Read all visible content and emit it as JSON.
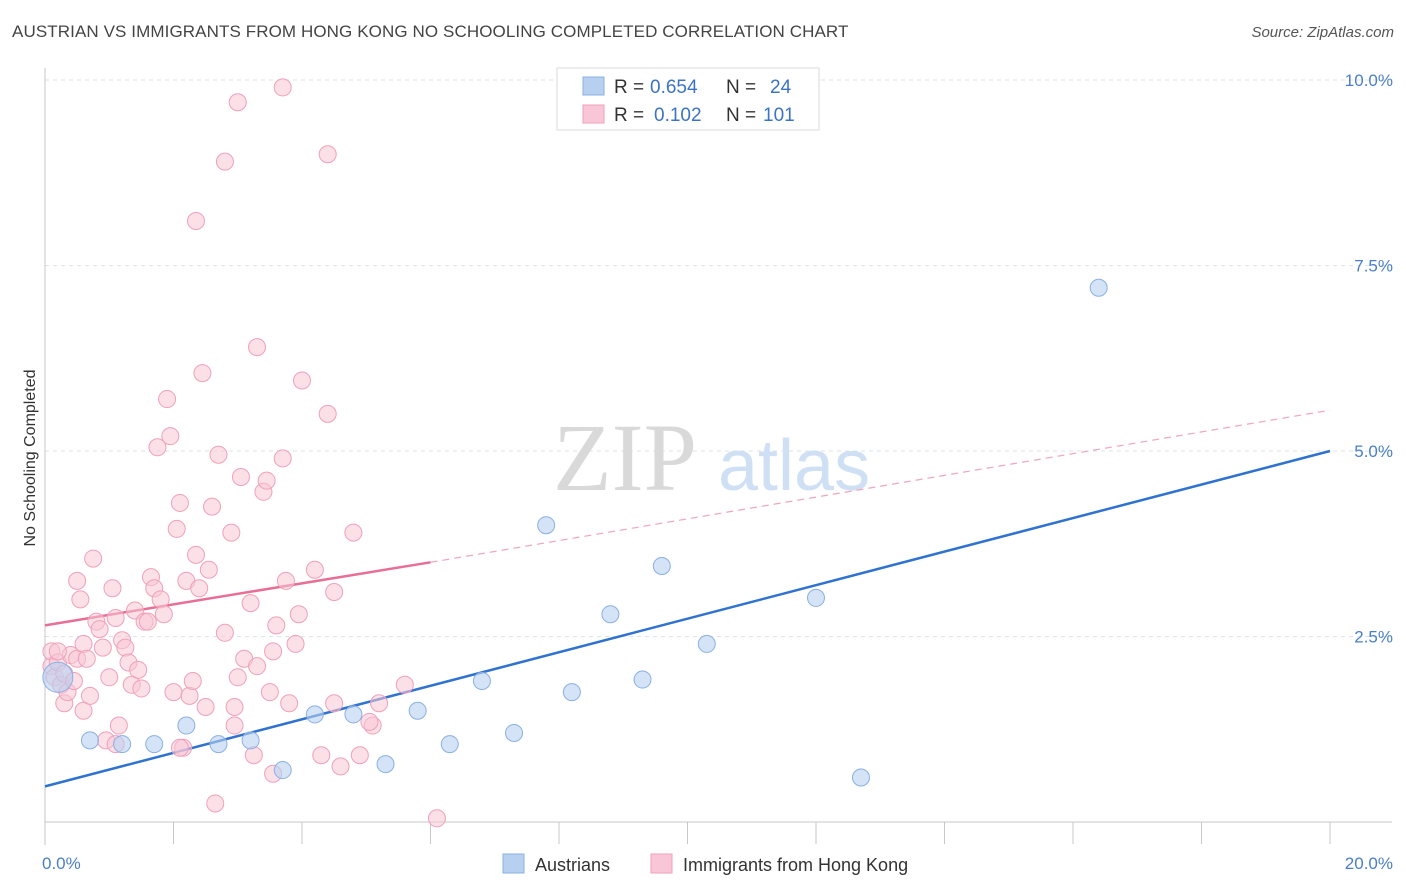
{
  "header": {
    "title": "AUSTRIAN VS IMMIGRANTS FROM HONG KONG NO SCHOOLING COMPLETED CORRELATION CHART",
    "source": "Source: ZipAtlas.com"
  },
  "watermark": {
    "zip": "ZIP",
    "atlas": "atlas"
  },
  "legend_top": [
    {
      "r_label": "R =",
      "r_value": "0.654",
      "n_label": "N =",
      "n_value": "24"
    },
    {
      "r_label": "R =",
      "r_value": "0.102",
      "n_label": "N =",
      "n_value": "101"
    }
  ],
  "colors": {
    "blue_fill": "#b8d0f0",
    "blue_stroke": "#8ab0e4",
    "blue_line": "#2f72d0",
    "pink_fill": "#f8c6d6",
    "pink_stroke": "#f0a0bb",
    "pink_line": "#e86e96",
    "tick_text": "#4a7fc8",
    "grid": "#dde3ea"
  },
  "chart_data": {
    "type": "scatter",
    "title": "AUSTRIAN VS IMMIGRANTS FROM HONG KONG NO SCHOOLING COMPLETED CORRELATION CHART",
    "ylabel": "No Schooling Completed",
    "xlim": [
      0,
      20
    ],
    "ylim": [
      0,
      10
    ],
    "x_tick_labels": [
      "0.0%",
      "20.0%"
    ],
    "y_ticks": [
      2.5,
      5.0,
      7.5,
      10.0
    ],
    "y_tick_labels": [
      "2.5%",
      "5.0%",
      "7.5%",
      "10.0%"
    ],
    "grid": true,
    "legend_placement": "top-center and bottom",
    "series": [
      {
        "name": "Austrians",
        "r": 0.654,
        "n": 24,
        "trend": {
          "x": [
            0,
            20
          ],
          "y": [
            0.48,
            5.0
          ],
          "style": "solid"
        },
        "points": [
          [
            0.2,
            1.95
          ],
          [
            0.7,
            1.1
          ],
          [
            1.2,
            1.05
          ],
          [
            1.7,
            1.05
          ],
          [
            2.2,
            1.3
          ],
          [
            2.7,
            1.05
          ],
          [
            3.2,
            1.1
          ],
          [
            3.7,
            0.7
          ],
          [
            4.2,
            1.45
          ],
          [
            4.8,
            1.45
          ],
          [
            5.3,
            0.78
          ],
          [
            5.8,
            1.5
          ],
          [
            6.3,
            1.05
          ],
          [
            6.8,
            1.9
          ],
          [
            7.3,
            1.2
          ],
          [
            7.8,
            4.0
          ],
          [
            8.2,
            1.75
          ],
          [
            8.8,
            2.8
          ],
          [
            9.3,
            1.92
          ],
          [
            9.6,
            3.45
          ],
          [
            10.3,
            2.4
          ],
          [
            12.0,
            3.02
          ],
          [
            12.7,
            0.6
          ],
          [
            16.4,
            7.2
          ]
        ]
      },
      {
        "name": "Immigrants from Hong Kong",
        "r": 0.102,
        "n": 101,
        "trend": {
          "x": [
            0,
            6.0,
            20
          ],
          "y": [
            2.65,
            3.5,
            5.55
          ],
          "style": "solid then dashed"
        },
        "points": [
          [
            0.1,
            2.1
          ],
          [
            0.1,
            2.3
          ],
          [
            0.15,
            1.95
          ],
          [
            0.2,
            2.15
          ],
          [
            0.25,
            1.85
          ],
          [
            0.3,
            2.0
          ],
          [
            0.3,
            1.6
          ],
          [
            0.35,
            1.75
          ],
          [
            0.4,
            2.25
          ],
          [
            0.45,
            1.9
          ],
          [
            0.5,
            3.25
          ],
          [
            0.5,
            2.2
          ],
          [
            0.55,
            3.0
          ],
          [
            0.6,
            2.4
          ],
          [
            0.6,
            1.5
          ],
          [
            0.65,
            2.2
          ],
          [
            0.7,
            1.7
          ],
          [
            0.75,
            3.55
          ],
          [
            0.8,
            2.7
          ],
          [
            0.85,
            2.6
          ],
          [
            0.9,
            2.35
          ],
          [
            0.95,
            1.1
          ],
          [
            1.0,
            1.95
          ],
          [
            1.05,
            3.15
          ],
          [
            1.1,
            2.75
          ],
          [
            1.15,
            1.3
          ],
          [
            1.2,
            2.45
          ],
          [
            1.25,
            2.35
          ],
          [
            1.3,
            2.15
          ],
          [
            1.35,
            1.85
          ],
          [
            1.4,
            2.85
          ],
          [
            1.45,
            2.05
          ],
          [
            1.5,
            1.8
          ],
          [
            1.55,
            2.7
          ],
          [
            1.6,
            2.7
          ],
          [
            1.65,
            3.3
          ],
          [
            1.7,
            3.15
          ],
          [
            1.75,
            5.05
          ],
          [
            1.8,
            3.0
          ],
          [
            1.85,
            2.8
          ],
          [
            1.9,
            5.7
          ],
          [
            1.95,
            5.2
          ],
          [
            2.0,
            1.75
          ],
          [
            2.05,
            3.95
          ],
          [
            2.1,
            4.3
          ],
          [
            2.15,
            1.0
          ],
          [
            2.2,
            3.25
          ],
          [
            2.25,
            1.7
          ],
          [
            2.3,
            1.9
          ],
          [
            2.35,
            3.6
          ],
          [
            2.4,
            3.15
          ],
          [
            2.45,
            6.05
          ],
          [
            2.5,
            1.55
          ],
          [
            2.55,
            3.4
          ],
          [
            2.6,
            4.25
          ],
          [
            2.65,
            0.25
          ],
          [
            2.7,
            4.95
          ],
          [
            2.8,
            2.55
          ],
          [
            2.9,
            3.9
          ],
          [
            2.95,
            1.3
          ],
          [
            3.0,
            1.95
          ],
          [
            3.05,
            4.65
          ],
          [
            3.1,
            2.2
          ],
          [
            3.2,
            2.95
          ],
          [
            3.25,
            0.9
          ],
          [
            3.3,
            2.1
          ],
          [
            3.4,
            4.45
          ],
          [
            3.45,
            4.6
          ],
          [
            3.5,
            1.75
          ],
          [
            3.55,
            2.3
          ],
          [
            3.6,
            2.65
          ],
          [
            3.7,
            4.9
          ],
          [
            3.75,
            3.25
          ],
          [
            3.8,
            1.6
          ],
          [
            3.9,
            2.4
          ],
          [
            3.95,
            2.8
          ],
          [
            4.0,
            5.95
          ],
          [
            4.2,
            3.4
          ],
          [
            4.3,
            0.9
          ],
          [
            4.5,
            3.1
          ],
          [
            4.6,
            0.75
          ],
          [
            4.8,
            3.9
          ],
          [
            4.9,
            0.9
          ],
          [
            5.1,
            1.3
          ],
          [
            5.2,
            1.6
          ],
          [
            5.6,
            1.85
          ],
          [
            3.55,
            0.65
          ],
          [
            3.0,
            9.7
          ],
          [
            2.35,
            8.1
          ],
          [
            2.8,
            8.9
          ],
          [
            4.4,
            9.0
          ],
          [
            3.7,
            9.9
          ],
          [
            3.3,
            6.4
          ],
          [
            4.4,
            5.5
          ],
          [
            2.95,
            1.55
          ],
          [
            1.1,
            1.05
          ],
          [
            4.5,
            1.6
          ],
          [
            5.05,
            1.35
          ],
          [
            6.1,
            0.05
          ],
          [
            0.2,
            2.3
          ],
          [
            2.1,
            1.0
          ]
        ]
      }
    ]
  },
  "legend_bottom": [
    {
      "label": "Austrians"
    },
    {
      "label": "Immigrants from Hong Kong"
    }
  ]
}
